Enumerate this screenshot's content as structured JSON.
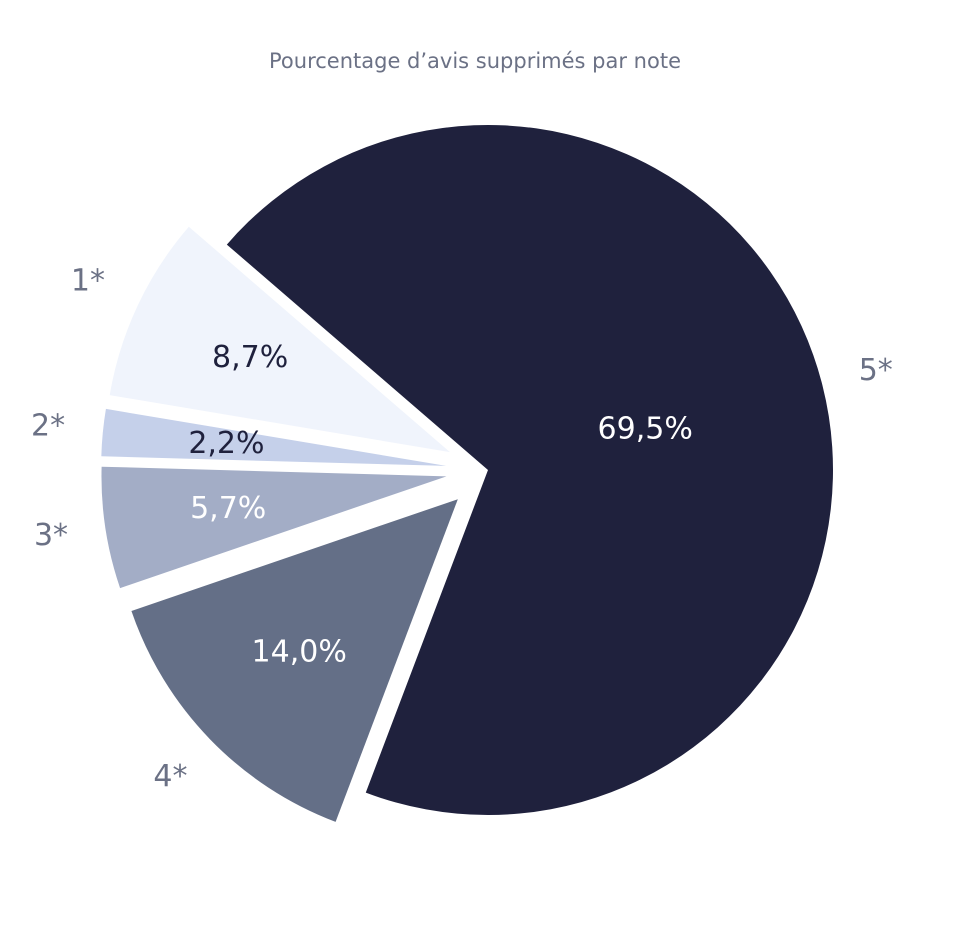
{
  "chart_data": {
    "type": "pie",
    "title": "Pourcentage d’avis supprimés par note",
    "categories": [
      "1*",
      "2*",
      "3*",
      "4*",
      "5*"
    ],
    "values": [
      8.7,
      2.2,
      5.7,
      14.0,
      69.5
    ],
    "value_labels": [
      "8,7%",
      "2,2%",
      "5,7%",
      "14,0%",
      "69,5%"
    ],
    "colors": [
      "#f0f4fc",
      "#c5d0ea",
      "#a3adc6",
      "#646f87",
      "#1f213d"
    ]
  }
}
